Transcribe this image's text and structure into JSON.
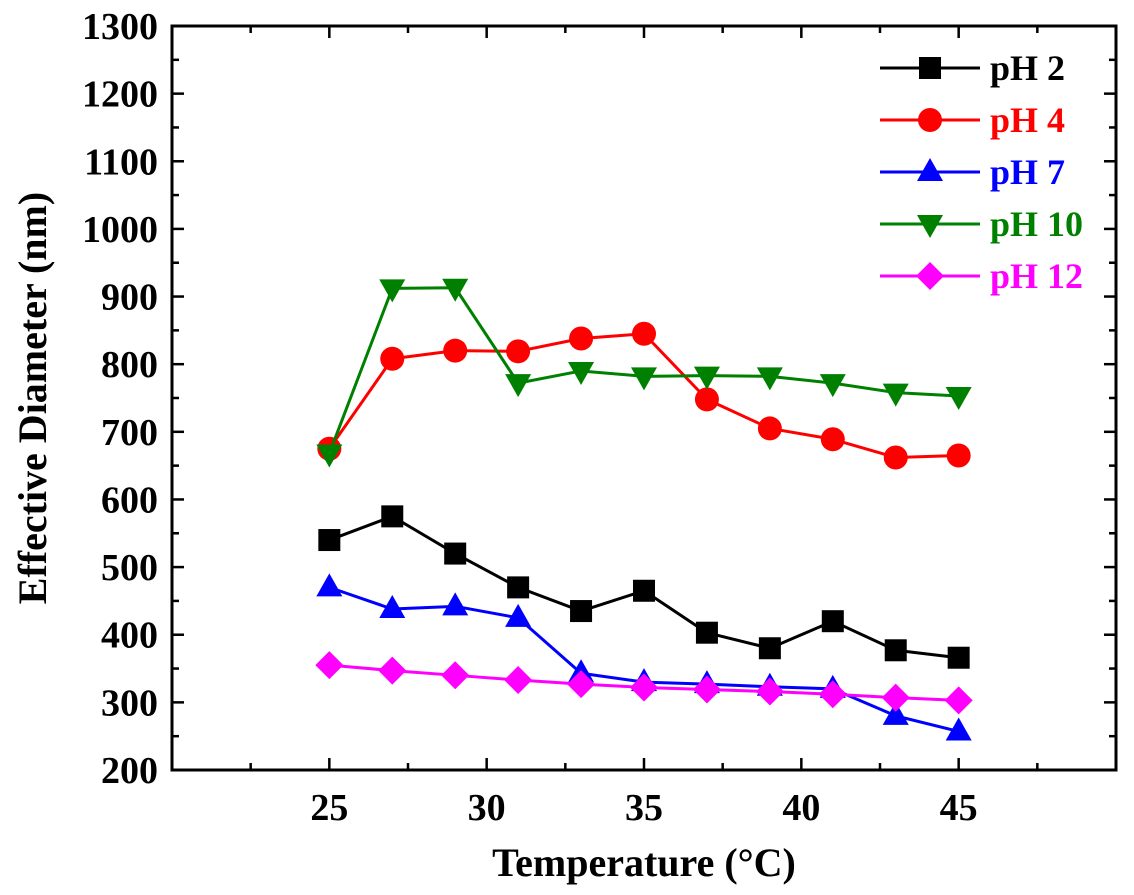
{
  "chart_data": {
    "type": "line",
    "title": "",
    "xlabel": "Temperature (°C)",
    "ylabel": "Effective Diameter (nm)",
    "xlim": [
      20,
      50
    ],
    "ylim": [
      200,
      1300
    ],
    "xticks": [
      25,
      30,
      35,
      40,
      45
    ],
    "yticks": [
      200,
      300,
      400,
      500,
      600,
      700,
      800,
      900,
      1000,
      1100,
      1200,
      1300
    ],
    "grid": false,
    "legend_position": "top-right",
    "x": [
      25,
      27,
      29,
      31,
      33,
      35,
      37,
      39,
      41,
      43,
      45
    ],
    "series": [
      {
        "name": "pH 2",
        "color": "#000000",
        "marker": "square",
        "values": [
          540,
          575,
          520,
          470,
          435,
          465,
          403,
          380,
          420,
          377,
          366
        ]
      },
      {
        "name": "pH 4",
        "color": "#ff0000",
        "marker": "circle",
        "values": [
          675,
          808,
          820,
          819,
          838,
          845,
          748,
          705,
          689,
          662,
          665
        ]
      },
      {
        "name": "pH 7",
        "color": "#0000ff",
        "marker": "triangle-up",
        "values": [
          470,
          438,
          442,
          425,
          343,
          330,
          327,
          323,
          320,
          280,
          257
        ]
      },
      {
        "name": "pH 10",
        "color": "#008000",
        "marker": "triangle-down",
        "values": [
          668,
          912,
          913,
          772,
          790,
          782,
          783,
          782,
          772,
          758,
          753
        ]
      },
      {
        "name": "pH 12",
        "color": "#ff00ff",
        "marker": "diamond",
        "values": [
          355,
          347,
          340,
          333,
          327,
          322,
          319,
          316,
          312,
          307,
          303
        ]
      }
    ]
  }
}
